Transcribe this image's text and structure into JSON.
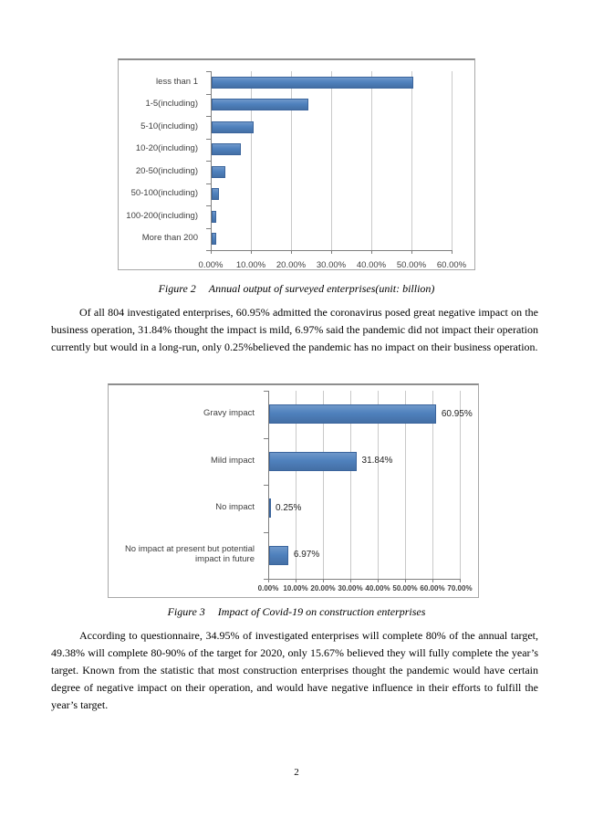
{
  "document": {
    "page_number": "2",
    "figures": [
      {
        "label": "Figure 2",
        "caption": "Annual output of surveyed enterprises(unit: billion)"
      },
      {
        "label": "Figure 3",
        "caption": "Impact of Covid-19 on construction enterprises"
      }
    ],
    "paragraphs": [
      "Of all 804 investigated enterprises, 60.95% admitted the coronavirus posed great negative impact on the business operation, 31.84% thought the impact is mild, 6.97% said the pandemic did not impact their operation currently but would in a long-run, only 0.25%believed the pandemic has no impact on their business operation.",
      "According to questionnaire, 34.95% of investigated enterprises will complete 80% of the annual target, 49.38% will complete 80-90% of the target for 2020, only 15.67% believed they will fully complete the year’s target. Known from the statistic that most construction enterprises thought the pandemic would have certain degree of negative impact on their operation, and would have negative influence in their efforts to fulfill the year’s target."
    ]
  },
  "chart_data": [
    {
      "type": "bar",
      "orientation": "horizontal",
      "title": "",
      "categories": [
        "less than 1",
        "1-5(including)",
        "5-10(including)",
        "10-20(including)",
        "20-50(including)",
        "50-100(including)",
        "100-200(including)",
        "More than 200"
      ],
      "values": [
        50.2,
        24.1,
        10.4,
        7.3,
        3.4,
        1.8,
        1.1,
        1.1
      ],
      "data_labels": null,
      "xlim": [
        0,
        60
      ],
      "x_tick_labels": [
        "0.00%",
        "10.00%",
        "20.00%",
        "30.00%",
        "40.00%",
        "50.00%",
        "60.00%"
      ],
      "grid": true,
      "legend": false,
      "bar_color": "#4f81bd",
      "bar_border_color": "#3a649c",
      "gridline_color": "#c9c9c9",
      "axis_color": "#7f7f7f"
    },
    {
      "type": "bar",
      "orientation": "horizontal",
      "title": "",
      "categories": [
        "Gravy impact",
        "Mild impact",
        "No impact",
        "No impact at present but potential impact in future"
      ],
      "values": [
        60.95,
        31.84,
        0.25,
        6.97
      ],
      "data_labels": [
        "60.95%",
        "31.84%",
        "0.25%",
        "6.97%"
      ],
      "xlim": [
        0,
        70
      ],
      "x_tick_labels": [
        "0.00%",
        "10.00%",
        "20.00%",
        "30.00%",
        "40.00%",
        "50.00%",
        "60.00%",
        "70.00%"
      ],
      "grid": true,
      "legend": false,
      "bar_color": "#4f81bd",
      "bar_border_color": "#3a649c",
      "gridline_color": "#c9c9c9",
      "axis_color": "#7f7f7f"
    }
  ]
}
